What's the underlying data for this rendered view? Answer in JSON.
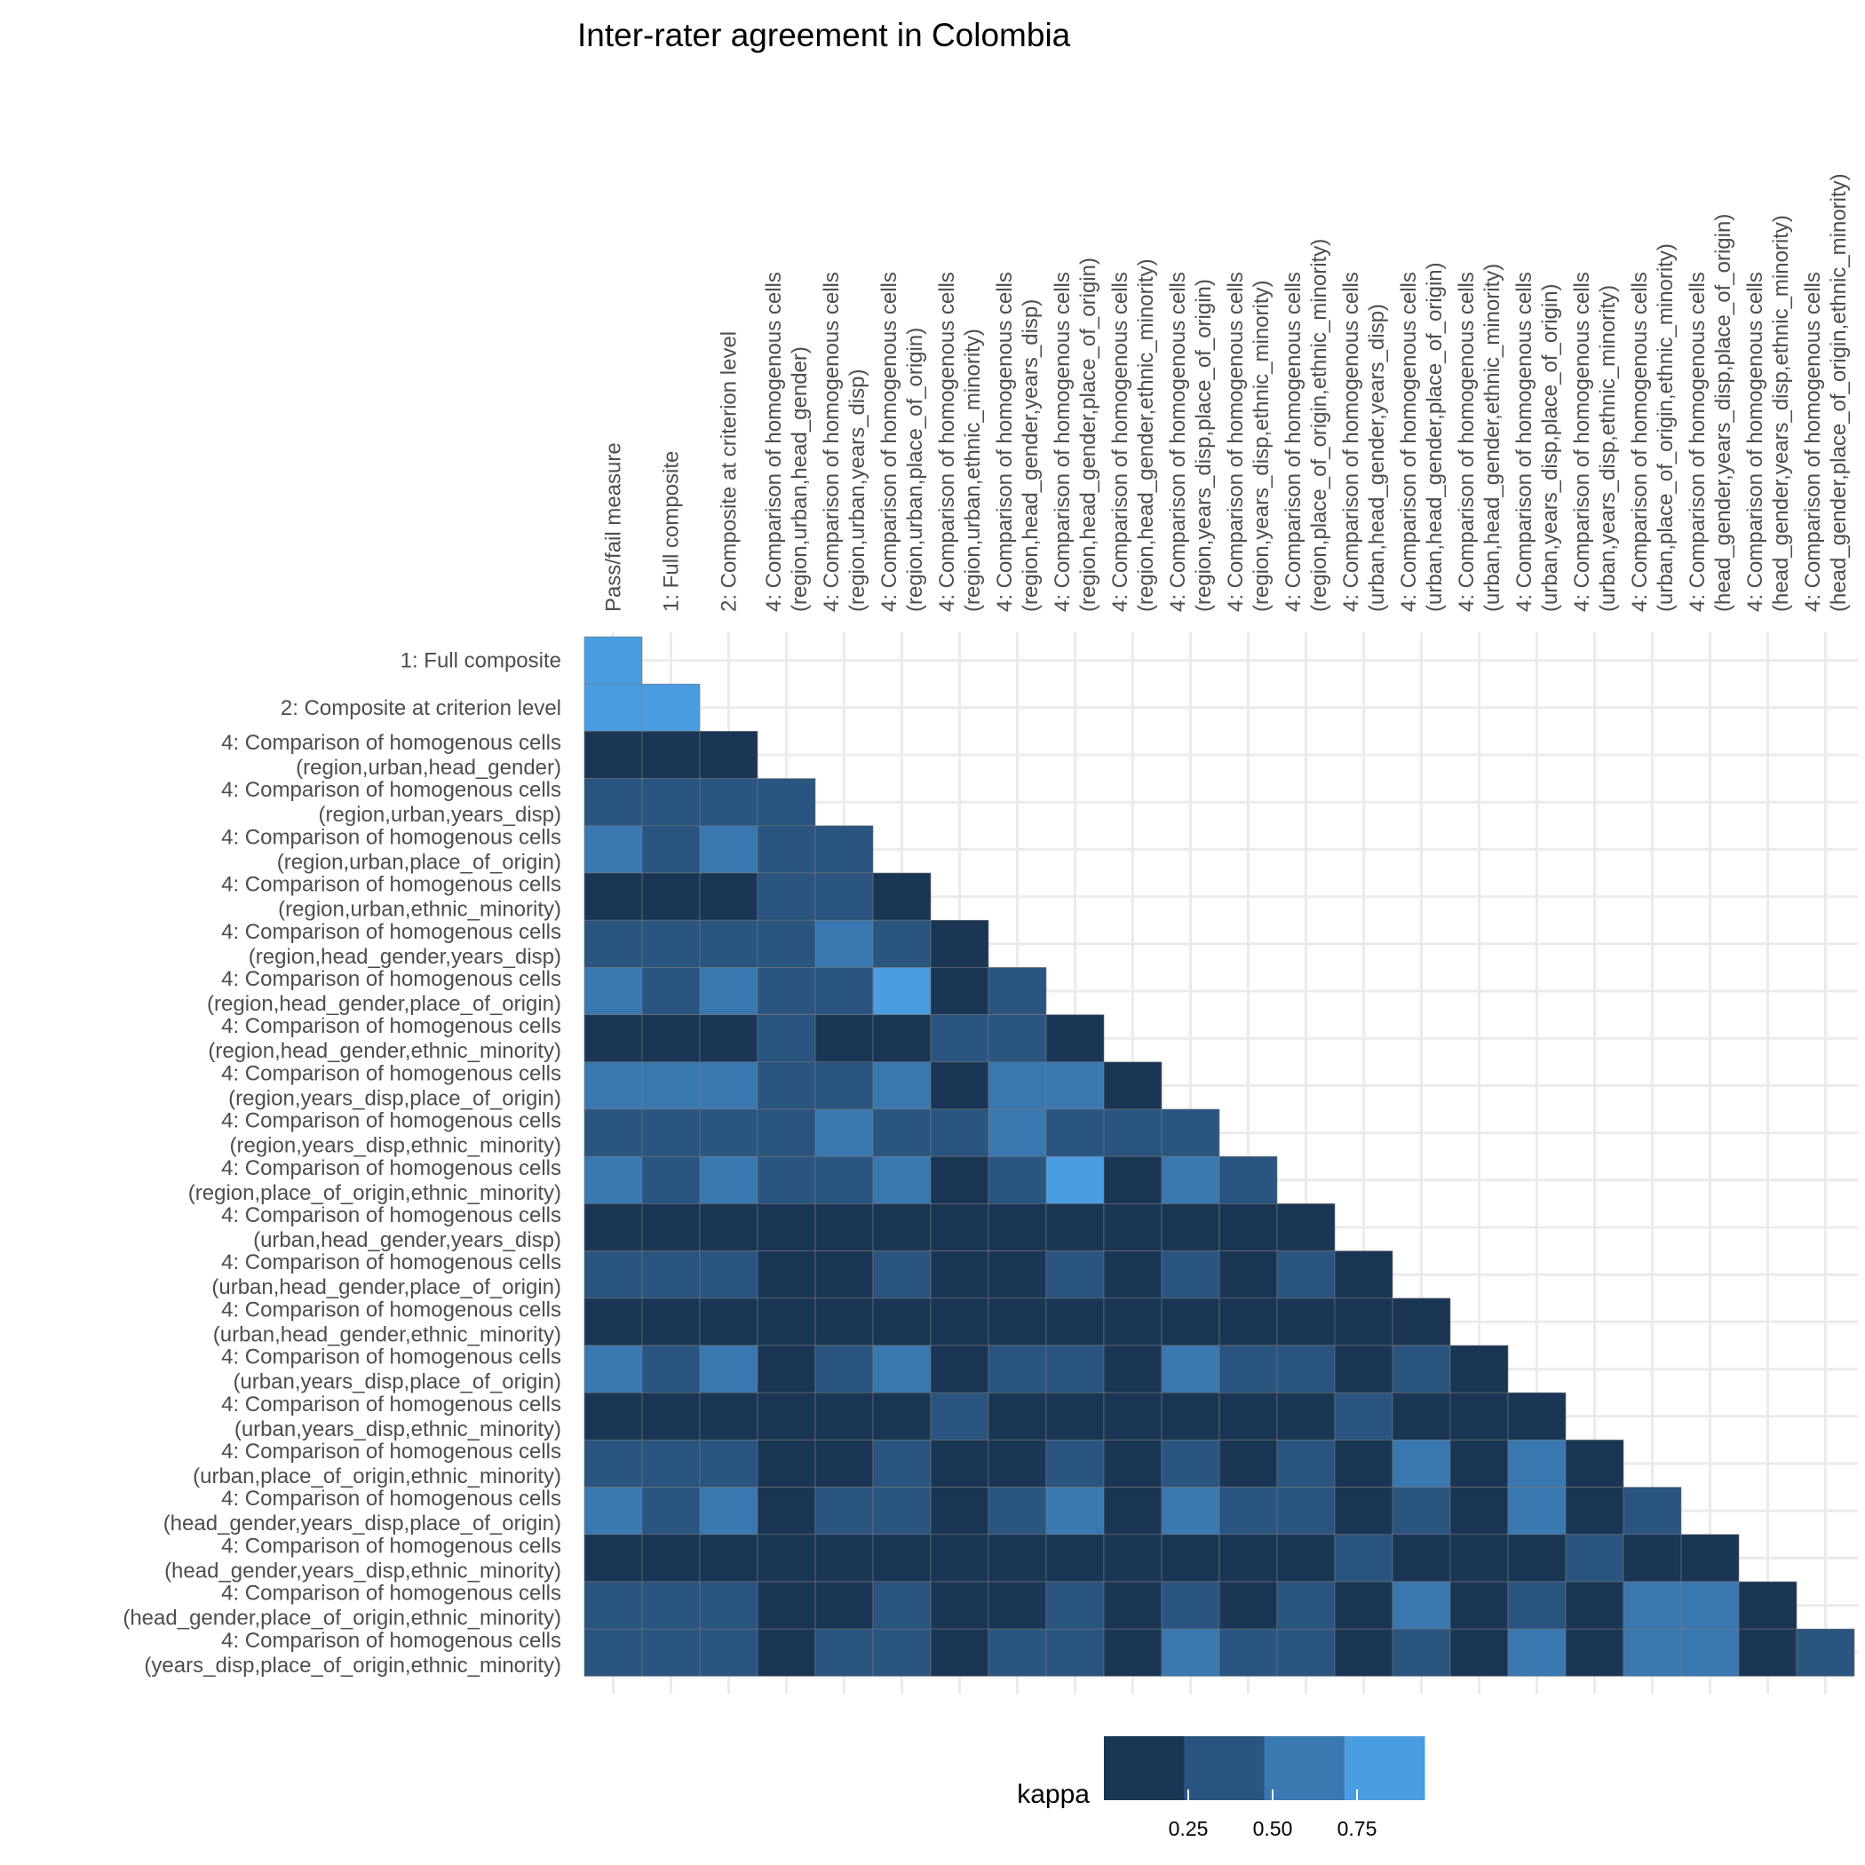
{
  "chart_data": {
    "type": "heatmap",
    "title": "Inter-rater agreement in Colombia",
    "x_labels": [
      [
        "Pass/fail measure"
      ],
      [
        "1: Full composite"
      ],
      [
        "2: Composite at criterion level"
      ],
      [
        "4: Comparison of homogenous cells",
        "(region,urban,head_gender)"
      ],
      [
        "4: Comparison of homogenous cells",
        "(region,urban,years_disp)"
      ],
      [
        "4: Comparison of homogenous cells",
        "(region,urban,place_of_origin)"
      ],
      [
        "4: Comparison of homogenous cells",
        "(region,urban,ethnic_minority)"
      ],
      [
        "4: Comparison of homogenous cells",
        "(region,head_gender,years_disp)"
      ],
      [
        "4: Comparison of homogenous cells",
        "(region,head_gender,place_of_origin)"
      ],
      [
        "4: Comparison of homogenous cells",
        "(region,head_gender,ethnic_minority)"
      ],
      [
        "4: Comparison of homogenous cells",
        "(region,years_disp,place_of_origin)"
      ],
      [
        "4: Comparison of homogenous cells",
        "(region,years_disp,ethnic_minority)"
      ],
      [
        "4: Comparison of homogenous cells",
        "(region,place_of_origin,ethnic_minority)"
      ],
      [
        "4: Comparison of homogenous cells",
        "(urban,head_gender,years_disp)"
      ],
      [
        "4: Comparison of homogenous cells",
        "(urban,head_gender,place_of_origin)"
      ],
      [
        "4: Comparison of homogenous cells",
        "(urban,head_gender,ethnic_minority)"
      ],
      [
        "4: Comparison of homogenous cells",
        "(urban,years_disp,place_of_origin)"
      ],
      [
        "4: Comparison of homogenous cells",
        "(urban,years_disp,ethnic_minority)"
      ],
      [
        "4: Comparison of homogenous cells",
        "(urban,place_of_origin,ethnic_minority)"
      ],
      [
        "4: Comparison of homogenous cells",
        "(head_gender,years_disp,place_of_origin)"
      ],
      [
        "4: Comparison of homogenous cells",
        "(head_gender,years_disp,ethnic_minority)"
      ],
      [
        "4: Comparison of homogenous cells",
        "(head_gender,place_of_origin,ethnic_minority)"
      ]
    ],
    "y_labels": [
      [
        "1: Full composite"
      ],
      [
        "2: Composite at criterion level"
      ],
      [
        "4: Comparison of homogenous cells",
        "(region,urban,head_gender)"
      ],
      [
        "4: Comparison of homogenous cells",
        "(region,urban,years_disp)"
      ],
      [
        "4: Comparison of homogenous cells",
        "(region,urban,place_of_origin)"
      ],
      [
        "4: Comparison of homogenous cells",
        "(region,urban,ethnic_minority)"
      ],
      [
        "4: Comparison of homogenous cells",
        "(region,head_gender,years_disp)"
      ],
      [
        "4: Comparison of homogenous cells",
        "(region,head_gender,place_of_origin)"
      ],
      [
        "4: Comparison of homogenous cells",
        "(region,head_gender,ethnic_minority)"
      ],
      [
        "4: Comparison of homogenous cells",
        "(region,years_disp,place_of_origin)"
      ],
      [
        "4: Comparison of homogenous cells",
        "(region,years_disp,ethnic_minority)"
      ],
      [
        "4: Comparison of homogenous cells",
        "(region,place_of_origin,ethnic_minority)"
      ],
      [
        "4: Comparison of homogenous cells",
        "(urban,head_gender,years_disp)"
      ],
      [
        "4: Comparison of homogenous cells",
        "(urban,head_gender,place_of_origin)"
      ],
      [
        "4: Comparison of homogenous cells",
        "(urban,head_gender,ethnic_minority)"
      ],
      [
        "4: Comparison of homogenous cells",
        "(urban,years_disp,place_of_origin)"
      ],
      [
        "4: Comparison of homogenous cells",
        "(urban,years_disp,ethnic_minority)"
      ],
      [
        "4: Comparison of homogenous cells",
        "(urban,place_of_origin,ethnic_minority)"
      ],
      [
        "4: Comparison of homogenous cells",
        "(head_gender,years_disp,place_of_origin)"
      ],
      [
        "4: Comparison of homogenous cells",
        "(head_gender,years_disp,ethnic_minority)"
      ],
      [
        "4: Comparison of homogenous cells",
        "(head_gender,place_of_origin,ethnic_minority)"
      ],
      [
        "4: Comparison of homogenous cells",
        "(years_disp,place_of_origin,ethnic_minority)"
      ]
    ],
    "values": [
      [
        0.85
      ],
      [
        0.85,
        0.85
      ],
      [
        0.1,
        0.1,
        0.1
      ],
      [
        0.35,
        0.35,
        0.35,
        0.35
      ],
      [
        0.6,
        0.35,
        0.6,
        0.35,
        0.35
      ],
      [
        0.1,
        0.1,
        0.1,
        0.35,
        0.35,
        0.1
      ],
      [
        0.35,
        0.35,
        0.35,
        0.35,
        0.6,
        0.35,
        0.1
      ],
      [
        0.6,
        0.35,
        0.6,
        0.35,
        0.35,
        0.85,
        0.1,
        0.35
      ],
      [
        0.1,
        0.1,
        0.1,
        0.35,
        0.1,
        0.1,
        0.35,
        0.35,
        0.1
      ],
      [
        0.6,
        0.6,
        0.6,
        0.35,
        0.35,
        0.6,
        0.1,
        0.6,
        0.6,
        0.1
      ],
      [
        0.35,
        0.35,
        0.35,
        0.35,
        0.6,
        0.35,
        0.35,
        0.6,
        0.35,
        0.35,
        0.35
      ],
      [
        0.6,
        0.35,
        0.6,
        0.35,
        0.35,
        0.6,
        0.1,
        0.35,
        0.85,
        0.1,
        0.6,
        0.35
      ],
      [
        0.1,
        0.1,
        0.1,
        0.1,
        0.1,
        0.1,
        0.1,
        0.1,
        0.1,
        0.1,
        0.1,
        0.1,
        0.1
      ],
      [
        0.35,
        0.35,
        0.35,
        0.1,
        0.1,
        0.35,
        0.1,
        0.1,
        0.35,
        0.1,
        0.35,
        0.1,
        0.35,
        0.1
      ],
      [
        0.1,
        0.1,
        0.1,
        0.1,
        0.1,
        0.1,
        0.1,
        0.1,
        0.1,
        0.1,
        0.1,
        0.1,
        0.1,
        0.1,
        0.1
      ],
      [
        0.6,
        0.35,
        0.6,
        0.1,
        0.35,
        0.6,
        0.1,
        0.35,
        0.35,
        0.1,
        0.6,
        0.35,
        0.35,
        0.1,
        0.35,
        0.1
      ],
      [
        0.1,
        0.1,
        0.1,
        0.1,
        0.1,
        0.1,
        0.35,
        0.1,
        0.1,
        0.1,
        0.1,
        0.1,
        0.1,
        0.35,
        0.1,
        0.1,
        0.1
      ],
      [
        0.35,
        0.35,
        0.35,
        0.1,
        0.1,
        0.35,
        0.1,
        0.1,
        0.35,
        0.1,
        0.35,
        0.1,
        0.35,
        0.1,
        0.6,
        0.1,
        0.6,
        0.1
      ],
      [
        0.6,
        0.35,
        0.6,
        0.1,
        0.35,
        0.35,
        0.1,
        0.35,
        0.6,
        0.1,
        0.6,
        0.35,
        0.35,
        0.1,
        0.35,
        0.1,
        0.6,
        0.1,
        0.35
      ],
      [
        0.1,
        0.1,
        0.1,
        0.1,
        0.1,
        0.1,
        0.1,
        0.1,
        0.1,
        0.1,
        0.1,
        0.1,
        0.1,
        0.35,
        0.1,
        0.1,
        0.1,
        0.35,
        0.1,
        0.1
      ],
      [
        0.35,
        0.35,
        0.35,
        0.1,
        0.1,
        0.35,
        0.1,
        0.1,
        0.35,
        0.1,
        0.35,
        0.1,
        0.35,
        0.1,
        0.6,
        0.1,
        0.35,
        0.1,
        0.6,
        0.6,
        0.1
      ],
      [
        0.35,
        0.35,
        0.35,
        0.1,
        0.35,
        0.35,
        0.1,
        0.35,
        0.35,
        0.1,
        0.6,
        0.35,
        0.35,
        0.1,
        0.35,
        0.1,
        0.6,
        0.1,
        0.6,
        0.6,
        0.1,
        0.35
      ]
    ],
    "legend": {
      "title": "kappa",
      "position": "bottom",
      "ticks": [
        0.25,
        0.5,
        0.75
      ],
      "tick_labels": [
        "0.25",
        "0.50",
        "0.75"
      ],
      "bins": [
        0.1,
        0.35,
        0.6,
        0.85
      ],
      "range": [
        0.0,
        0.95
      ]
    },
    "colors": {
      "bins": [
        "#1b3655",
        "#2a5580",
        "#3a78b2",
        "#4a9de0"
      ],
      "grid": "#ebebeb"
    },
    "grid": true
  }
}
